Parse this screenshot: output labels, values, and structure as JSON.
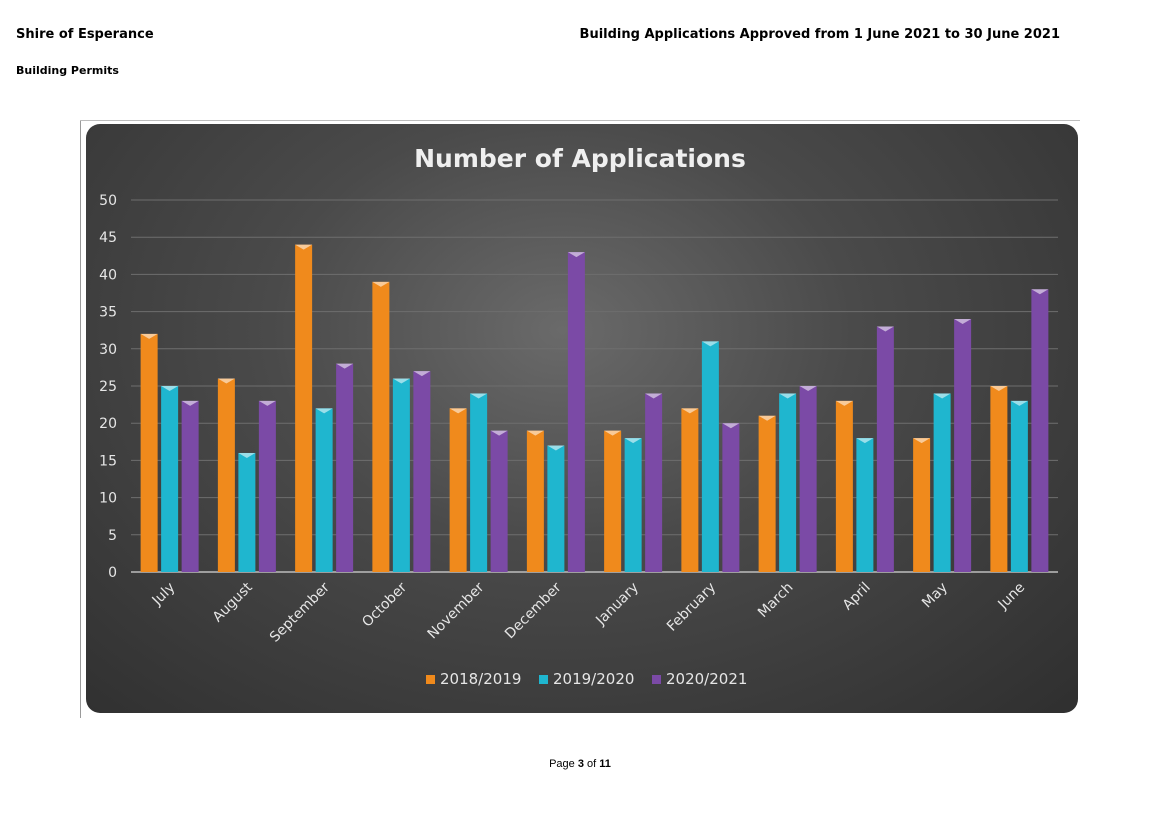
{
  "header": {
    "organisation": "Shire of Esperance",
    "report_title": "Building Applications Approved from 1 June 2021 to 30 June 2021",
    "section": "Building Permits"
  },
  "footer": {
    "page_word": "Page",
    "page_current": "3",
    "of_word": "of",
    "page_total": "11"
  },
  "chart_data": {
    "type": "bar",
    "title": "Number of Applications",
    "categories": [
      "July",
      "August",
      "September",
      "October",
      "November",
      "December",
      "January",
      "February",
      "March",
      "April",
      "May",
      "June"
    ],
    "series": [
      {
        "name": "2018/2019",
        "color": "#f08a1c",
        "values": [
          32,
          26,
          44,
          39,
          22,
          19,
          19,
          22,
          21,
          23,
          18,
          25
        ]
      },
      {
        "name": "2019/2020",
        "color": "#1fb6cf",
        "values": [
          25,
          16,
          22,
          26,
          24,
          17,
          18,
          31,
          24,
          18,
          24,
          23
        ]
      },
      {
        "name": "2020/2021",
        "color": "#7b4aa6",
        "values": [
          23,
          23,
          28,
          27,
          19,
          43,
          24,
          20,
          25,
          33,
          34,
          38
        ]
      }
    ],
    "yticks": [
      "0",
      "5",
      "10",
      "15",
      "20",
      "25",
      "30",
      "35",
      "40",
      "45",
      "50"
    ],
    "ylim": [
      0,
      50
    ],
    "grid": true,
    "legend_position": "bottom"
  }
}
